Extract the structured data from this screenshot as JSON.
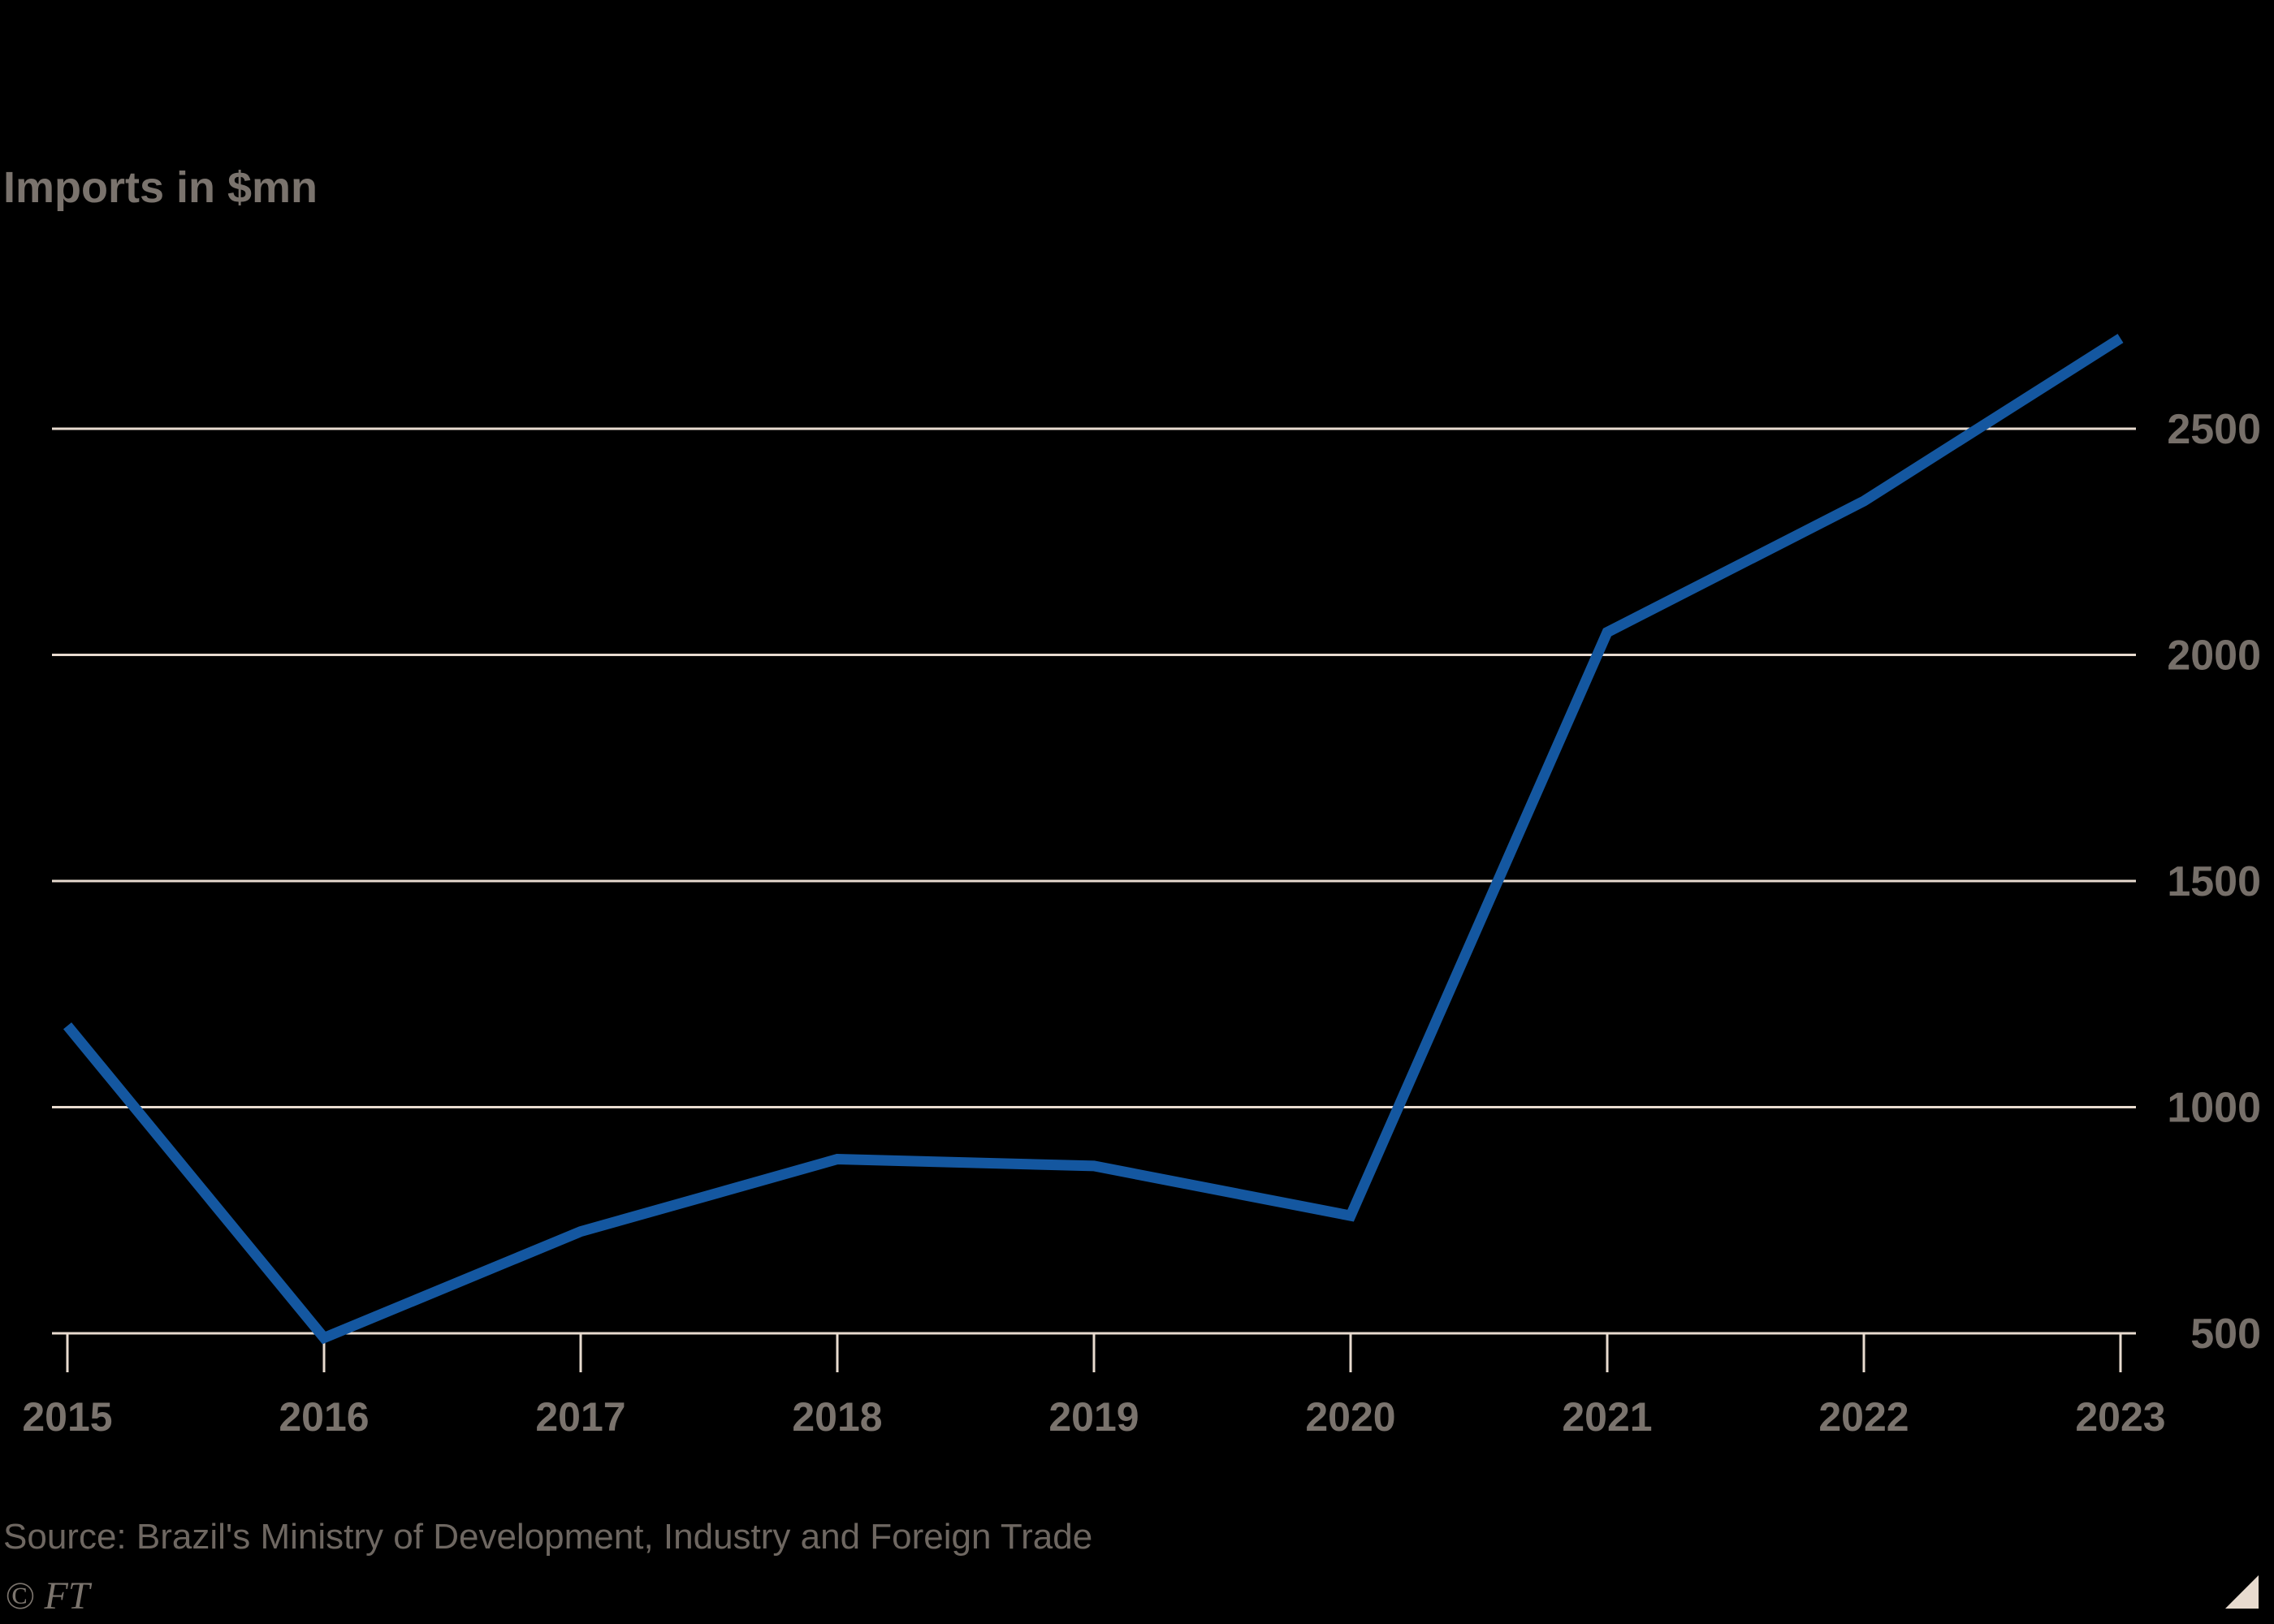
{
  "title": "Imports in $mn",
  "source_note": "Source: Brazil's Ministry of Development, Industry and Foreign Trade",
  "ft_mark": "© FT",
  "colors": {
    "background": "#000000",
    "line": "#1457a0",
    "grid": "#e8dbcf",
    "axis": "#e8dbcf",
    "tick": "#e8dbcf",
    "y_label": "#766f69",
    "x_label": "#7a736d",
    "title": "#7a736d",
    "source": "#6e6761",
    "ft": "#7c756e",
    "corner_triangle": "#e8dbcf"
  },
  "chart_data": {
    "type": "line",
    "title": "Imports in $mn",
    "xlabel": "",
    "ylabel": "Imports in $mn",
    "x": [
      2015,
      2016,
      2017,
      2018,
      2019,
      2020,
      2021,
      2022,
      2023
    ],
    "series": [
      {
        "name": "Imports in $mn",
        "values": [
          1180,
          490,
          725,
          885,
          870,
          760,
          2050,
          2340,
          2700
        ]
      }
    ],
    "y_ticks": [
      500,
      1000,
      1500,
      2000,
      2500
    ],
    "y_gridlines": [
      1000,
      1500,
      2000,
      2500
    ],
    "y_axis_value": 500,
    "ylim": [
      500,
      2760
    ],
    "grid": "horizontal",
    "legend_position": "none",
    "y_label_side": "right"
  }
}
